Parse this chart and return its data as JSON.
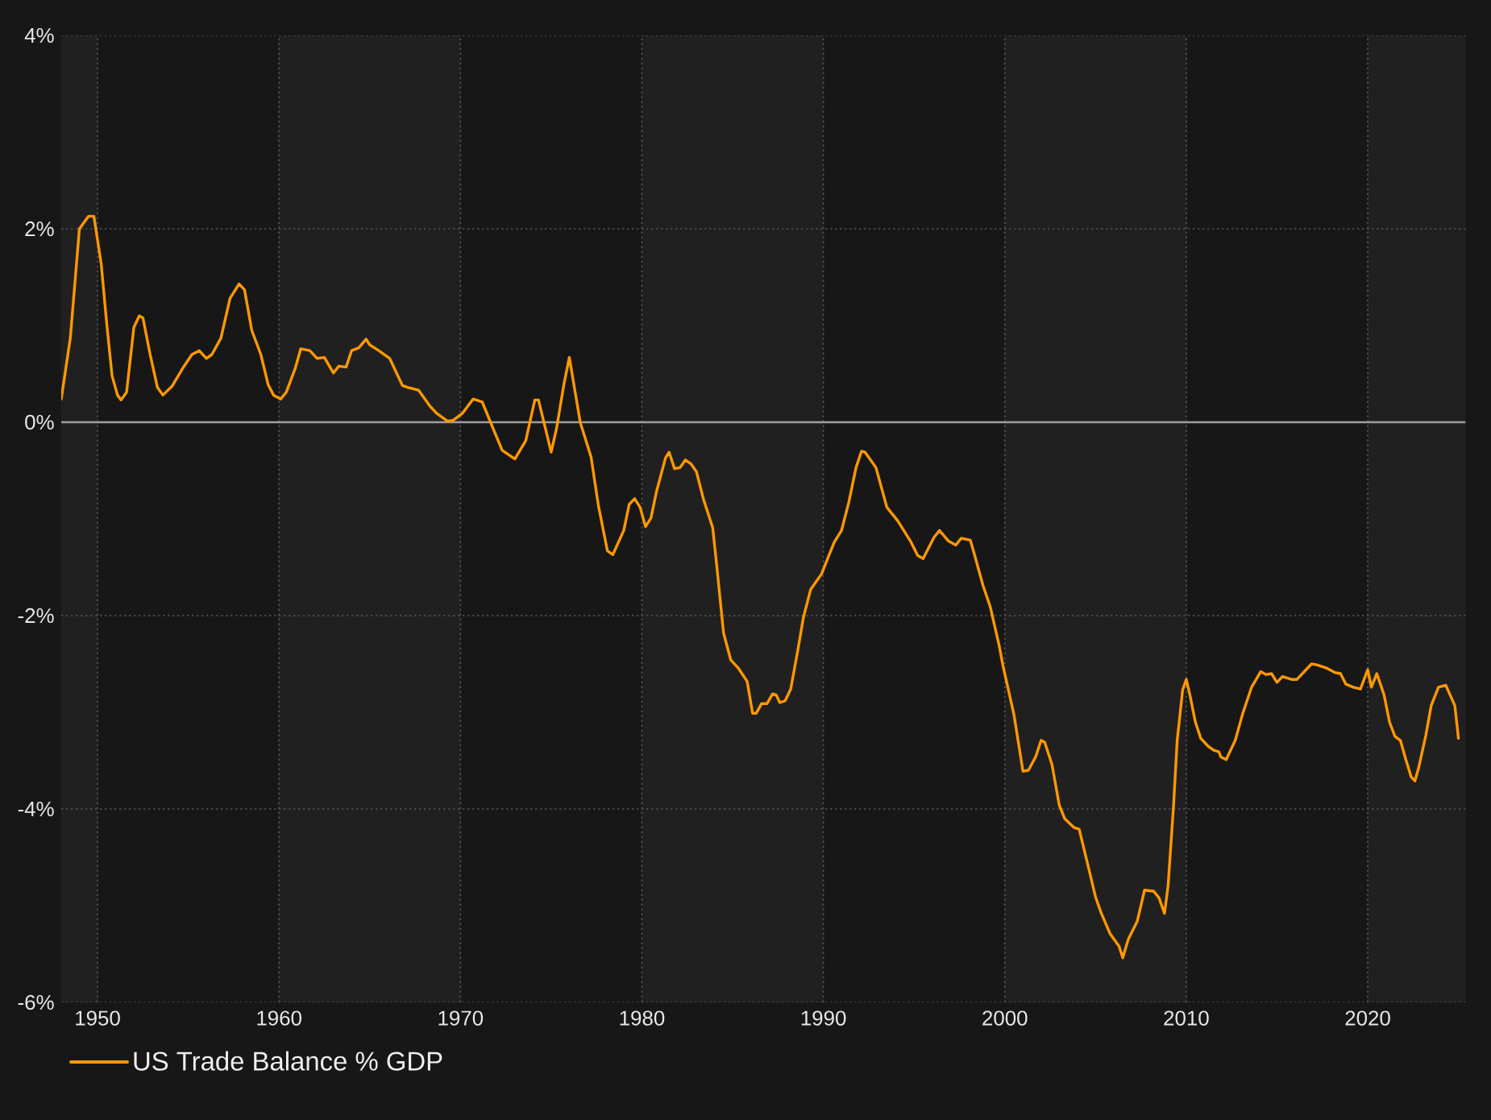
{
  "chart_data": {
    "type": "line",
    "x": [
      1948.0,
      1948.5,
      1949.0,
      1949.5,
      1949.8,
      1950.2,
      1950.5,
      1950.8,
      1951.1,
      1951.3,
      1951.6,
      1952.0,
      1952.3,
      1952.5,
      1952.9,
      1953.3,
      1953.6,
      1954.1,
      1954.7,
      1955.2,
      1955.6,
      1956.0,
      1956.3,
      1956.8,
      1957.3,
      1957.8,
      1958.1,
      1958.5,
      1959.0,
      1959.4,
      1959.7,
      1960.1,
      1960.4,
      1960.9,
      1961.2,
      1961.7,
      1962.1,
      1962.5,
      1963.0,
      1963.3,
      1963.7,
      1964.0,
      1964.4,
      1964.8,
      1965.0,
      1965.5,
      1966.1,
      1966.8,
      1967.1,
      1967.7,
      1968.3,
      1968.7,
      1969.3,
      1969.6,
      1970.1,
      1970.7,
      1971.2,
      1971.7,
      1972.3,
      1973.0,
      1973.6,
      1974.1,
      1974.3,
      1975.0,
      1975.3,
      1975.7,
      1976.0,
      1976.6,
      1977.2,
      1977.6,
      1978.1,
      1978.4,
      1979.0,
      1979.3,
      1979.6,
      1979.9,
      1980.2,
      1980.5,
      1980.8,
      1981.3,
      1981.5,
      1981.8,
      1982.1,
      1982.4,
      1982.7,
      1983.0,
      1983.4,
      1983.9,
      1984.1,
      1984.5,
      1984.9,
      1985.3,
      1985.8,
      1986.1,
      1986.3,
      1986.6,
      1986.9,
      1987.2,
      1987.4,
      1987.6,
      1987.9,
      1988.2,
      1988.6,
      1988.9,
      1989.3,
      1989.9,
      1990.3,
      1990.6,
      1991.0,
      1991.4,
      1991.8,
      1992.1,
      1992.3,
      1992.9,
      1993.5,
      1994.1,
      1994.8,
      1995.2,
      1995.5,
      1996.1,
      1996.4,
      1996.9,
      1997.3,
      1997.6,
      1998.1,
      1998.3,
      1998.8,
      1999.2,
      1999.7,
      1999.9,
      2000.5,
      2001.0,
      2001.3,
      2001.7,
      2002.0,
      2002.2,
      2002.6,
      2003.0,
      2003.3,
      2003.8,
      2004.1,
      2004.5,
      2005.0,
      2005.3,
      2005.8,
      2006.3,
      2006.5,
      2006.8,
      2007.3,
      2007.7,
      2008.2,
      2008.5,
      2008.8,
      2009.0,
      2009.3,
      2009.5,
      2009.8,
      2010.0,
      2010.2,
      2010.5,
      2010.8,
      2011.2,
      2011.5,
      2011.8,
      2011.9,
      2012.2,
      2012.7,
      2013.1,
      2013.6,
      2014.1,
      2014.4,
      2014.7,
      2015.0,
      2015.3,
      2015.8,
      2016.1,
      2016.5,
      2016.9,
      2017.2,
      2017.7,
      2018.2,
      2018.5,
      2018.8,
      2019.2,
      2019.6,
      2020.0,
      2020.2,
      2020.5,
      2020.9,
      2021.2,
      2021.5,
      2021.8,
      2022.1,
      2022.4,
      2022.6,
      2022.8,
      2023.2,
      2023.5,
      2023.9,
      2024.3,
      2024.8,
      2025.0
    ],
    "series": [
      {
        "name": "US Trade Balance % GDP",
        "color": "#ff9900",
        "values": [
          0.24,
          0.87,
          2.0,
          2.13,
          2.13,
          1.64,
          1.03,
          0.48,
          0.28,
          0.23,
          0.31,
          0.98,
          1.1,
          1.08,
          0.7,
          0.36,
          0.28,
          0.37,
          0.56,
          0.7,
          0.74,
          0.66,
          0.7,
          0.87,
          1.28,
          1.43,
          1.37,
          0.95,
          0.7,
          0.39,
          0.28,
          0.24,
          0.31,
          0.56,
          0.76,
          0.74,
          0.66,
          0.67,
          0.51,
          0.58,
          0.57,
          0.74,
          0.77,
          0.86,
          0.8,
          0.74,
          0.66,
          0.38,
          0.36,
          0.33,
          0.17,
          0.09,
          0.01,
          0.02,
          0.09,
          0.24,
          0.21,
          -0.02,
          -0.29,
          -0.38,
          -0.19,
          0.23,
          0.23,
          -0.31,
          -0.06,
          0.39,
          0.67,
          0.0,
          -0.36,
          -0.86,
          -1.33,
          -1.37,
          -1.12,
          -0.85,
          -0.79,
          -0.88,
          -1.08,
          -0.99,
          -0.72,
          -0.37,
          -0.31,
          -0.48,
          -0.47,
          -0.39,
          -0.43,
          -0.51,
          -0.8,
          -1.09,
          -1.44,
          -2.18,
          -2.46,
          -2.54,
          -2.68,
          -3.01,
          -3.01,
          -2.91,
          -2.91,
          -2.81,
          -2.82,
          -2.9,
          -2.88,
          -2.76,
          -2.35,
          -2.02,
          -1.73,
          -1.57,
          -1.38,
          -1.24,
          -1.12,
          -0.83,
          -0.47,
          -0.3,
          -0.31,
          -0.47,
          -0.88,
          -1.02,
          -1.23,
          -1.38,
          -1.41,
          -1.19,
          -1.12,
          -1.23,
          -1.27,
          -1.2,
          -1.22,
          -1.35,
          -1.69,
          -1.91,
          -2.32,
          -2.52,
          -3.02,
          -3.61,
          -3.6,
          -3.46,
          -3.29,
          -3.31,
          -3.54,
          -3.96,
          -4.1,
          -4.19,
          -4.21,
          -4.52,
          -4.91,
          -5.07,
          -5.29,
          -5.42,
          -5.54,
          -5.35,
          -5.16,
          -4.84,
          -4.85,
          -4.92,
          -5.08,
          -4.79,
          -3.96,
          -3.29,
          -2.77,
          -2.66,
          -2.82,
          -3.1,
          -3.27,
          -3.35,
          -3.39,
          -3.41,
          -3.46,
          -3.49,
          -3.29,
          -3.02,
          -2.74,
          -2.58,
          -2.61,
          -2.6,
          -2.69,
          -2.63,
          -2.66,
          -2.66,
          -2.58,
          -2.5,
          -2.51,
          -2.54,
          -2.59,
          -2.6,
          -2.71,
          -2.74,
          -2.76,
          -2.56,
          -2.74,
          -2.6,
          -2.82,
          -3.1,
          -3.25,
          -3.29,
          -3.49,
          -3.67,
          -3.71,
          -3.58,
          -3.24,
          -2.93,
          -2.74,
          -2.72,
          -2.93,
          -3.27
        ]
      }
    ],
    "xlim": [
      1948,
      2025.4
    ],
    "xticks": [
      1950,
      1960,
      1970,
      1980,
      1990,
      2000,
      2010,
      2020
    ],
    "ylim": [
      -6,
      4
    ],
    "yticks": [
      {
        "value": -6,
        "label": "-6%"
      },
      {
        "value": -4,
        "label": "-4%"
      },
      {
        "value": -2,
        "label": "-2%"
      },
      {
        "value": 0,
        "label": "0%"
      },
      {
        "value": 2,
        "label": "2%"
      },
      {
        "value": 4,
        "label": "4%"
      }
    ],
    "grid": true,
    "legend": "bottom left",
    "ref_lines": [
      {
        "axis": "y",
        "value": 0,
        "color": "#9e9e9e"
      }
    ],
    "bands": [
      {
        "axis": "x",
        "from": 1948,
        "to": 1950,
        "color": "#202020"
      },
      {
        "axis": "x",
        "from": 1960,
        "to": 1970,
        "color": "#202020"
      },
      {
        "axis": "x",
        "from": 1980,
        "to": 1990,
        "color": "#202020"
      },
      {
        "axis": "x",
        "from": 2000,
        "to": 2010,
        "color": "#202020"
      },
      {
        "axis": "x",
        "from": 2020,
        "to": 2025.4,
        "color": "#202020"
      }
    ]
  }
}
